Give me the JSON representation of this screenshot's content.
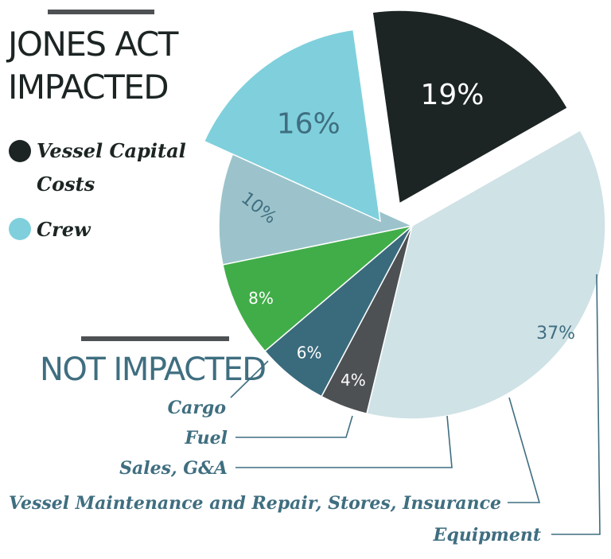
{
  "headings": {
    "impacted": [
      "JONES ACT",
      "IMPACTED"
    ],
    "not_impacted": "NOT IMPACTED"
  },
  "legend": {
    "items": [
      {
        "lines": [
          "Vessel Capital",
          "Costs"
        ],
        "color": "#1c2424"
      },
      {
        "lines": [
          "Crew"
        ],
        "color": "#7fd0dc"
      }
    ]
  },
  "category_labels": {
    "cargo": "Cargo",
    "fuel": "Fuel",
    "sales": "Sales, G&A",
    "maintenance": "Vessel Maintenance  and Repair, Stores, Insurance",
    "equipment": "Equipment"
  },
  "colors": {
    "vessel_capital_costs": "#1c2424",
    "crew": "#7fd0dc",
    "equipment": "#cfe2e6",
    "maintenance": "#4d5153",
    "sales": "#3a6b7d",
    "fuel": "#41ad49",
    "cargo": "#9cc3cb",
    "heading_dark": "#1c2424",
    "heading_blue": "#3f6e80"
  },
  "chart_data": {
    "type": "pie",
    "slices": [
      {
        "name": "Vessel Capital Costs",
        "value": 19,
        "label": "19%",
        "group": "Jones Act Impacted",
        "exploded": true
      },
      {
        "name": "Equipment",
        "value": 37,
        "label": "37%",
        "group": "Not Impacted",
        "exploded": false
      },
      {
        "name": "Vessel Maintenance and Repair, Stores, Insurance",
        "value": 4,
        "label": "4%",
        "group": "Not Impacted",
        "exploded": false
      },
      {
        "name": "Sales, G&A",
        "value": 6,
        "label": "6%",
        "group": "Not Impacted",
        "exploded": false
      },
      {
        "name": "Fuel",
        "value": 8,
        "label": "8%",
        "group": "Not Impacted",
        "exploded": false
      },
      {
        "name": "Cargo",
        "value": 10,
        "label": "10%",
        "group": "Not Impacted",
        "exploded": false
      },
      {
        "name": "Crew",
        "value": 16,
        "label": "16%",
        "group": "Jones Act Impacted",
        "exploded": true
      }
    ]
  }
}
